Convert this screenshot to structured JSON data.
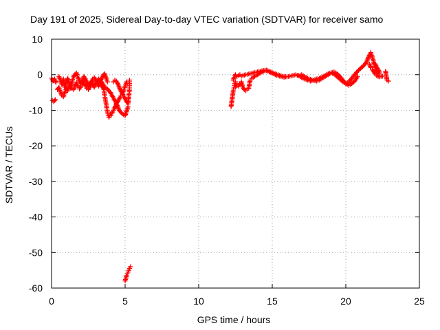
{
  "chart_data": {
    "type": "scatter",
    "title": "Day 191 of 2025, Sidereal Day-to-day VTEC variation (SDTVAR) for receiver samo",
    "xlabel": "GPS time / hours",
    "ylabel": "SDTVAR / TECUs",
    "xlim": [
      0,
      25
    ],
    "ylim": [
      -60,
      10
    ],
    "xticks": [
      "0",
      "5",
      "10",
      "15",
      "20",
      "25"
    ],
    "yticks": [
      "10",
      "0",
      "-10",
      "-20",
      "-30",
      "-40",
      "-50",
      "-60"
    ],
    "grid": true,
    "marker": "plus",
    "color": "#ff0000",
    "series": [
      {
        "name": "SDTVAR",
        "segments": [
          {
            "x": [
              0.0,
              0.1,
              0.2,
              0.3
            ],
            "y": [
              -1.0,
              -1.8,
              -1.2,
              -2.2
            ]
          },
          {
            "x": [
              0.05,
              0.15,
              0.25
            ],
            "y": [
              -7.2,
              -7.6,
              -7.0
            ]
          },
          {
            "x": [
              0.5,
              0.6,
              0.7,
              0.8,
              0.9,
              1.0,
              1.1,
              1.2,
              1.3,
              1.4,
              1.5,
              1.6,
              1.7,
              1.8,
              1.9,
              2.0,
              2.1,
              2.2,
              2.3,
              2.4,
              2.5,
              2.6,
              2.7,
              2.8,
              2.9,
              3.0,
              3.1,
              3.2,
              3.3,
              3.4,
              3.5,
              3.6,
              3.7,
              3.8
            ],
            "y": [
              -0.5,
              -1.5,
              -2.8,
              -1.2,
              -3.5,
              -2.0,
              -1.0,
              -2.5,
              -3.8,
              -1.8,
              -0.5,
              0.2,
              0.5,
              -0.8,
              -1.8,
              -2.5,
              -1.5,
              -0.5,
              -1.2,
              -2.0,
              -2.8,
              -3.5,
              -2.2,
              -1.2,
              -0.8,
              -1.5,
              -2.5,
              -3.2,
              -2.0,
              -1.0,
              -0.3,
              0.3,
              -0.8,
              -2.0
            ]
          },
          {
            "x": [
              0.4,
              0.5,
              0.6,
              0.7,
              0.8,
              0.9,
              1.0,
              1.1,
              1.2,
              1.3,
              1.4,
              1.5,
              1.6,
              1.7,
              1.8,
              1.9,
              2.0,
              2.1,
              2.2,
              2.3,
              2.4,
              2.5,
              2.6,
              2.7,
              2.8,
              2.9,
              3.0,
              3.1,
              3.2,
              3.3,
              3.4,
              3.5
            ],
            "y": [
              -4.2,
              -3.5,
              -4.8,
              -5.8,
              -6.2,
              -5.0,
              -3.8,
              -4.5,
              -3.2,
              -2.5,
              -3.8,
              -4.2,
              -3.0,
              -2.2,
              -3.5,
              -4.0,
              -3.2,
              -2.8,
              -2.0,
              -3.0,
              -3.8,
              -4.2,
              -3.0,
              -2.0,
              -2.8,
              -3.5,
              -2.5,
              -1.8,
              -1.2,
              -2.2,
              -3.0,
              -3.6
            ]
          },
          {
            "x": [
              3.5,
              3.55,
              3.6,
              3.65,
              3.7,
              3.75,
              3.8,
              3.85,
              3.9,
              3.95,
              4.0,
              4.05,
              4.1,
              4.15,
              4.2,
              4.3,
              4.4,
              4.5,
              4.6,
              4.7,
              4.8,
              4.9,
              5.0,
              5.1
            ],
            "y": [
              -3.0,
              -4.2,
              -5.5,
              -6.8,
              -8.0,
              -9.2,
              -10.5,
              -11.5,
              -12.0,
              -11.6,
              -11.0,
              -11.4,
              -10.8,
              -10.5,
              -10.0,
              -9.2,
              -8.2,
              -7.5,
              -6.8,
              -6.0,
              -5.5,
              -4.5,
              -3.2,
              -2.0
            ]
          },
          {
            "x": [
              3.4,
              3.6,
              3.8,
              4.0,
              4.2,
              4.4,
              4.6,
              4.8,
              5.0,
              5.2
            ],
            "y": [
              -2.0,
              -3.5,
              -4.0,
              -5.0,
              -6.5,
              -8.0,
              -10.0,
              -11.0,
              -11.5,
              -9.0
            ]
          },
          {
            "x": [
              4.2,
              4.3,
              4.4,
              4.5,
              4.6,
              4.7,
              4.8,
              4.9,
              5.0,
              5.1,
              5.2,
              5.25,
              5.3,
              5.3,
              5.3,
              5.3
            ],
            "y": [
              -2.0,
              -1.5,
              -1.8,
              -2.5,
              -3.5,
              -4.5,
              -5.2,
              -6.0,
              -6.8,
              -7.5,
              -8.2,
              -6.0,
              -4.0,
              -3.0,
              -2.0,
              -1.5
            ]
          },
          {
            "x": [
              5.0,
              5.05,
              5.1,
              5.15,
              5.2,
              5.25,
              5.3,
              5.35
            ],
            "y": [
              -58.0,
              -57.2,
              -56.5,
              -56.0,
              -55.5,
              -55.0,
              -54.5,
              -54.0
            ]
          },
          {
            "x": [
              12.2,
              12.25,
              12.3,
              12.35,
              12.4,
              12.45,
              12.5
            ],
            "y": [
              -9.0,
              -7.5,
              -6.0,
              -4.5,
              -3.5,
              -2.5,
              -2.0
            ]
          },
          {
            "x": [
              12.35,
              12.4,
              12.45,
              12.5,
              12.6,
              12.7,
              12.8,
              12.9,
              13.0,
              13.2,
              13.4,
              13.6,
              13.8,
              14.0,
              14.2,
              14.4,
              14.6,
              14.8,
              15.0,
              15.2,
              15.4,
              15.6,
              15.8,
              16.0,
              16.2,
              16.4,
              16.6,
              16.8,
              17.0,
              17.2,
              17.4,
              17.6,
              17.8,
              18.0,
              18.2,
              18.4,
              18.6,
              18.8,
              19.0,
              19.2,
              19.4,
              19.6,
              19.8,
              20.0,
              20.2,
              20.4,
              20.6,
              20.8,
              21.0,
              21.2,
              21.4,
              21.5,
              21.6,
              21.7,
              21.8,
              21.9,
              22.0,
              22.1,
              22.2,
              22.3
            ],
            "y": [
              -1.5,
              -0.8,
              -0.3,
              0.0,
              -0.5,
              -0.2,
              0.0,
              -0.4,
              -0.2,
              0.0,
              0.2,
              0.4,
              0.6,
              0.8,
              1.0,
              1.2,
              1.3,
              1.0,
              0.6,
              0.3,
              0.0,
              -0.3,
              -0.5,
              -0.6,
              -0.4,
              -0.2,
              0.0,
              -0.3,
              -0.8,
              -1.2,
              -1.5,
              -1.8,
              -1.5,
              -1.2,
              -1.0,
              -0.6,
              -0.2,
              0.3,
              0.6,
              0.2,
              -0.5,
              -1.2,
              -2.0,
              -2.5,
              -2.0,
              -1.0,
              0.0,
              1.0,
              1.8,
              2.5,
              3.5,
              4.5,
              5.5,
              6.2,
              5.0,
              3.5,
              2.0,
              0.8,
              0.2,
              -0.3
            ]
          },
          {
            "x": [
              12.5,
              12.6,
              12.7,
              12.8,
              12.9,
              13.0,
              13.1,
              13.2,
              13.3,
              13.4,
              13.5,
              13.6,
              13.7,
              13.8,
              14.0,
              14.2,
              14.4,
              14.6,
              14.8,
              15.0,
              15.2,
              15.4,
              15.6,
              15.8,
              16.0
            ],
            "y": [
              -3.5,
              -2.8,
              -3.2,
              -2.5,
              -2.0,
              -3.5,
              -4.2,
              -4.5,
              -4.0,
              -3.8,
              -1.5,
              -1.0,
              -0.8,
              -0.5,
              0.0,
              0.5,
              1.0,
              1.2,
              0.8,
              0.4,
              0.0,
              -0.3,
              -0.5,
              -0.7,
              -0.5
            ]
          },
          {
            "x": [
              16.8,
              17.0,
              17.2,
              17.4,
              17.6,
              17.8,
              18.0,
              18.2,
              18.4,
              18.6,
              18.8,
              19.0,
              19.2,
              19.4,
              19.6,
              19.8,
              20.0,
              20.2,
              20.4,
              20.6,
              20.8
            ],
            "y": [
              -0.2,
              0.0,
              -0.5,
              -1.0,
              -1.3,
              -1.6,
              -1.8,
              -1.5,
              -1.0,
              -0.5,
              0.0,
              0.5,
              0.8,
              0.3,
              -0.5,
              -1.5,
              -2.5,
              -3.0,
              -2.5,
              -1.8,
              -0.5
            ]
          },
          {
            "x": [
              21.6,
              21.7,
              21.8,
              21.9,
              22.0,
              22.1,
              22.2,
              22.3,
              22.4,
              22.5
            ],
            "y": [
              3.0,
              2.0,
              1.5,
              0.8,
              0.2,
              -0.3,
              -0.5,
              -0.6,
              -0.5,
              -0.4
            ]
          },
          {
            "x": [
              22.0,
              22.1,
              22.2,
              22.3
            ],
            "y": [
              3.0,
              2.2,
              1.5,
              0.5
            ]
          },
          {
            "x": [
              22.7,
              22.8,
              22.9
            ],
            "y": [
              1.0,
              -1.5,
              -1.8
            ]
          }
        ]
      }
    ]
  }
}
